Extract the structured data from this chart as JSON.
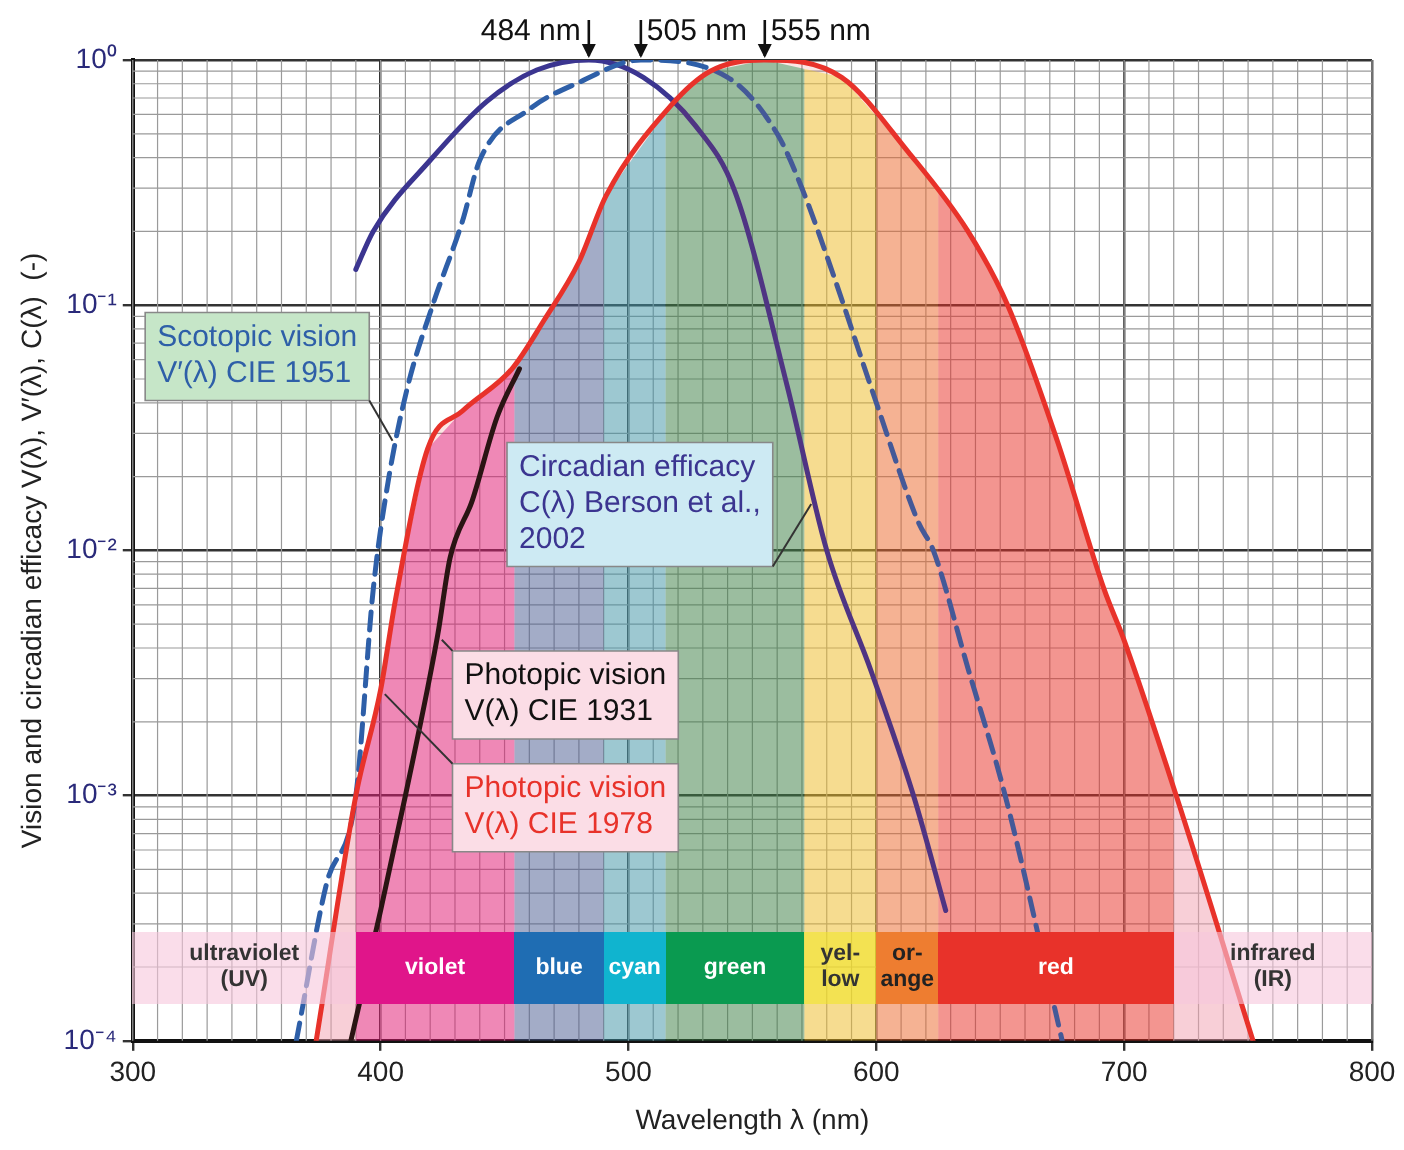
{
  "chart_data": {
    "type": "line",
    "xlabel": "Wavelength λ (nm)",
    "ylabel": "Vision and circadian efficacy V(λ), V′(λ), C(λ)  (-)",
    "log": "y",
    "grid": true,
    "legend": false,
    "xlim": [
      300,
      800
    ],
    "xticks": [
      300,
      400,
      500,
      600,
      700,
      800
    ],
    "ylim": [
      0.0001,
      1
    ],
    "yticks": [
      {
        "value": 0.0001,
        "label": "10⁻⁴"
      },
      {
        "value": 0.001,
        "label": "10⁻³"
      },
      {
        "value": 0.01,
        "label": "10⁻²"
      },
      {
        "value": 0.1,
        "label": "10⁻¹"
      },
      {
        "value": 1,
        "label": "10⁰"
      }
    ],
    "series": [
      {
        "name": "Photopic vision\nV(λ) CIE 1978",
        "type": "area",
        "color": "#e8322a",
        "x": [
          374,
          390,
          400,
          406,
          419,
          433,
          453,
          466,
          480,
          491,
          517,
          533,
          555,
          586,
          613,
          637,
          653,
          673,
          692,
          700,
          721,
          752
        ],
        "values": [
          0.0001,
          0.001,
          0.0027,
          0.0063,
          0.026,
          0.037,
          0.055,
          0.087,
          0.15,
          0.28,
          0.65,
          0.9,
          1,
          0.85,
          0.42,
          0.2,
          0.1,
          0.028,
          0.0069,
          0.0043,
          0.001,
          0.0001
        ]
      },
      {
        "name": "Photopic vision\nV(λ) CIE 1931",
        "type": "line",
        "color": "#111111",
        "x": [
          388,
          400,
          410,
          423,
          428,
          437,
          447,
          456
        ],
        "values": [
          0.0001,
          0.00034,
          0.001,
          0.0045,
          0.0093,
          0.016,
          0.035,
          0.055
        ]
      },
      {
        "name": "Scotopic vision\nV′(λ) CIE 1951",
        "type": "line",
        "line_style": "dashed",
        "color": "#2e5fa8",
        "x": [
          366,
          378,
          390,
          397,
          403,
          411,
          421,
          433,
          440,
          460,
          480,
          505,
          540,
          560,
          570,
          583,
          600,
          617,
          623,
          637,
          652,
          675
        ],
        "values": [
          0.0001,
          0.00043,
          0.001,
          0.0069,
          0.019,
          0.047,
          0.1,
          0.22,
          0.39,
          0.63,
          0.81,
          1,
          0.85,
          0.5,
          0.3,
          0.13,
          0.04,
          0.013,
          0.01,
          0.0033,
          0.001,
          0.0001
        ]
      },
      {
        "name": "Circadian efficacy\nC(λ) Berson et al.,\n2002",
        "type": "line",
        "color": "#3b3590",
        "x": [
          390,
          397,
          420,
          443,
          463,
          484,
          506,
          527,
          543,
          564,
          580,
          598,
          615,
          628
        ],
        "values": [
          0.14,
          0.2,
          0.39,
          0.68,
          0.91,
          1,
          0.85,
          0.54,
          0.29,
          0.047,
          0.01,
          0.0032,
          0.001,
          0.00034
        ]
      }
    ],
    "bands": [
      {
        "axis": "x",
        "from": 300,
        "to": 390,
        "label": "ultraviolet\n(UV)",
        "color": "#f6c6dc"
      },
      {
        "axis": "x",
        "from": 390,
        "to": 454,
        "label": "violet",
        "color": "#e0158a"
      },
      {
        "axis": "x",
        "from": 454,
        "to": 490,
        "label": "blue",
        "color": "#1f6db3"
      },
      {
        "axis": "x",
        "from": 490,
        "to": 515,
        "label": "cyan",
        "color": "#10b4cf"
      },
      {
        "axis": "x",
        "from": 515,
        "to": 571,
        "label": "green",
        "color": "#0a9a50"
      },
      {
        "axis": "x",
        "from": 571,
        "to": 600,
        "label": "yel-\nlow",
        "color": "#f2e62a"
      },
      {
        "axis": "x",
        "from": 600,
        "to": 625,
        "label": "or-\nange",
        "color": "#ee7d30"
      },
      {
        "axis": "x",
        "from": 625,
        "to": 720,
        "label": "red",
        "color": "#e8322a"
      },
      {
        "axis": "x",
        "from": 720,
        "to": 800,
        "label": "infrared\n(IR)",
        "color": "#f6c6dc"
      }
    ],
    "annotations": [
      {
        "text": "484 nm",
        "x": 484,
        "y": 1
      },
      {
        "text": "505 nm",
        "x": 505,
        "y": 1
      },
      {
        "text": "555 nm",
        "x": 555,
        "y": 1
      }
    ]
  }
}
